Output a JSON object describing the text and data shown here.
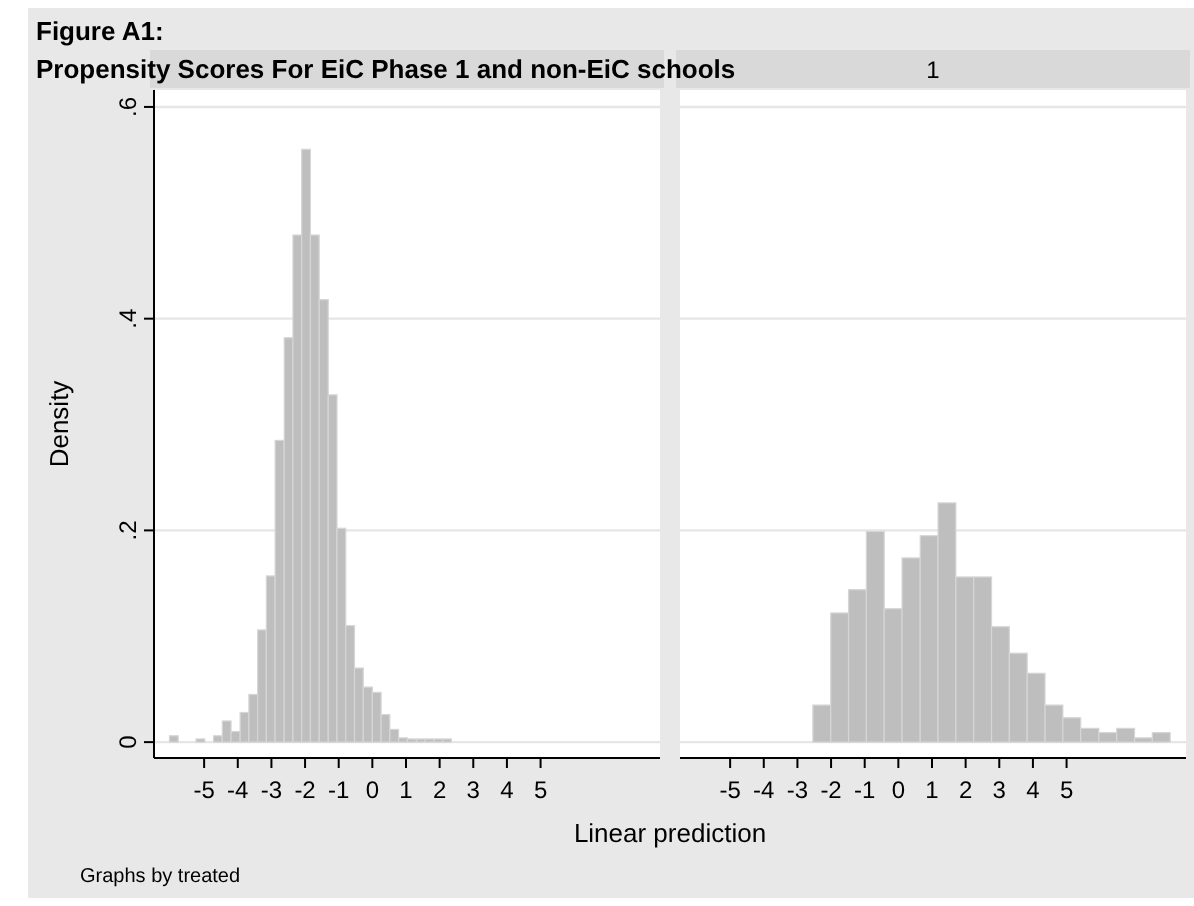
{
  "chart_data": [
    {
      "type": "histogram",
      "title": "Figure A1:",
      "subtitle": "Propensity Scores For EiC Phase 1 and non-EiC schools",
      "ylabel": "Density",
      "xlabel": "Linear prediction",
      "annotations": [
        "Graphs by treated"
      ],
      "color": "#bebebe",
      "grid": "y",
      "bins": [
        -6.03,
        -5.77,
        -5.51,
        -5.24,
        -4.98,
        -4.72,
        -4.46,
        -4.2,
        -3.93,
        -3.67,
        -3.41,
        -3.15,
        -2.89,
        -2.62,
        -2.36,
        -2.1,
        -1.84,
        -1.58,
        -1.31,
        -1.05,
        -0.79,
        -0.53,
        -0.27,
        0.0,
        0.26,
        0.52,
        0.78,
        1.04,
        1.31,
        1.57,
        1.83,
        2.09,
        2.35
      ],
      "values": [
        0.006,
        0,
        0,
        0.003,
        0,
        0.006,
        0.02,
        0.01,
        0.028,
        0.045,
        0.106,
        0.157,
        0.285,
        0.382,
        0.479,
        0.56,
        0.479,
        0.418,
        0.328,
        0.202,
        0.11,
        0.07,
        0.052,
        0.047,
        0.026,
        0.012,
        0.004,
        0.003,
        0.003,
        0.003,
        0.003,
        0.003
      ],
      "xlim": [
        -6.49,
        8.55
      ],
      "xticks": [
        -5,
        -4,
        -3,
        -2,
        -1,
        0,
        1,
        2,
        3,
        4,
        5
      ],
      "ylim": [
        -0.015,
        0.616
      ],
      "yticks": [
        0,
        {
          "value": 0.2,
          "label": ".2"
        },
        {
          "value": 0.4,
          "label": ".4"
        },
        {
          "value": 0.6,
          "label": ".6"
        }
      ]
    },
    {
      "type": "histogram",
      "title": "1",
      "color": "#bebebe",
      "grid": "y",
      "tick_labels": "x",
      "bins": [
        -2.54,
        -2.01,
        -1.48,
        -0.95,
        -0.42,
        0.11,
        0.65,
        1.18,
        1.71,
        2.24,
        2.77,
        3.3,
        3.83,
        4.36,
        4.89,
        5.42,
        5.96,
        6.49,
        7.02,
        7.55,
        8.08
      ],
      "values": [
        0.035,
        0.122,
        0.144,
        0.199,
        0.126,
        0.174,
        0.195,
        0.226,
        0.156,
        0.156,
        0.109,
        0.084,
        0.065,
        0.035,
        0.023,
        0.013,
        0.009,
        0.013,
        0.004,
        0.009
      ],
      "xlim": [
        -6.49,
        8.55
      ],
      "xticks": [
        -5,
        -4,
        -3,
        -2,
        -1,
        0,
        1,
        2,
        3,
        4,
        5
      ],
      "ylim": [
        -0.015,
        0.616
      ],
      "yticks": [
        0,
        0.2,
        0.4,
        0.6
      ]
    }
  ]
}
